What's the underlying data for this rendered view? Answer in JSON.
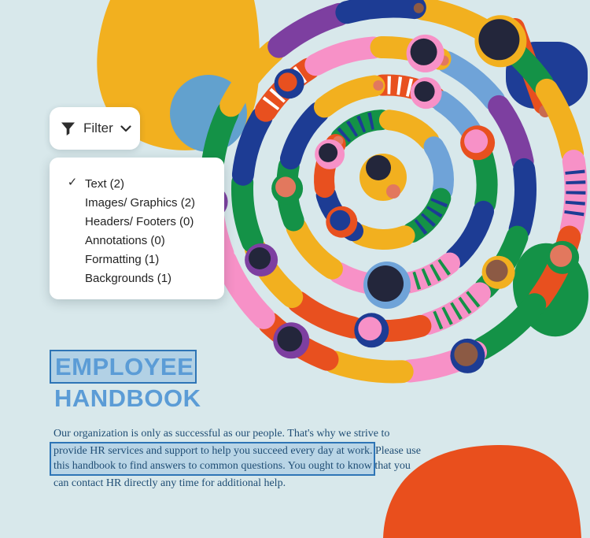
{
  "filter": {
    "button_label": "Filter",
    "check_glyph": "✓",
    "menu_items": [
      {
        "label": "Text (2)",
        "checked": true
      },
      {
        "label": "Images/ Graphics (2)",
        "checked": false
      },
      {
        "label": "Headers/ Footers (0)",
        "checked": false
      },
      {
        "label": "Annotations (0)",
        "checked": false
      },
      {
        "label": "Formatting (1)",
        "checked": false
      },
      {
        "label": "Backgrounds (1)",
        "checked": false
      }
    ]
  },
  "content": {
    "title_line1": "EMPLOYEE",
    "title_line2": "HANDBOOK",
    "paragraph_lines": [
      "Our organization is only as successful as our people. That's why we strive to",
      "provide HR services and support to help you succeed every day at work. Please use",
      "this handbook to find answers to common questions. You ought to know that you",
      "can contact HR directly any time for additional help."
    ]
  },
  "colors": {
    "background": "#d8e8eb",
    "selection_border_blue": "#2e75b6",
    "selection_fill_blue": "rgba(91,156,214,0.3)",
    "title_blue": "#5b9cd6",
    "paragraph_blue": "#204e75",
    "menu_text": "#222222",
    "blob_yellow": "#f2b01f",
    "blob_blue": "#62a1ce",
    "blob_navy": "#1e3d96",
    "blob_orange": "#e94f1d"
  },
  "illustration": {
    "name": "people-holding-hands-spiral",
    "palette": {
      "yellow": "#f2b01f",
      "orange": "#e8501f",
      "green": "#149247",
      "navy": "#1d3c94",
      "purple": "#7d3fa0",
      "pink": "#f791c7",
      "sky": "#6fa3d8",
      "skin": "#e2785e",
      "skin_dark": "#c96a50",
      "brown": "#8c5a44",
      "head": "#23263b",
      "white": "#ffffff"
    },
    "rings": [
      {
        "colors": [
          "green|navy",
          "yellow",
          "sky",
          "green|navy",
          "yellow",
          "navy",
          "orange"
        ]
      },
      {
        "colors": [
          "orange|white",
          "sky",
          "green",
          "navy",
          "pink|green",
          "pink",
          "yellow",
          "green",
          "navy",
          "yellow"
        ]
      },
      {
        "colors": [
          "sky",
          "purple",
          "navy",
          "green",
          "pink|green",
          "orange",
          "orange",
          "yellow",
          "green",
          "navy",
          "orange|white",
          "pink",
          "yellow"
        ]
      },
      {
        "colors": [
          "yellow",
          "green",
          "yellow",
          "pink|navy",
          "orange",
          "green",
          "pink",
          "yellow",
          "orange",
          "pink",
          "pink",
          "green",
          "yellow",
          "purple",
          "navy"
        ]
      }
    ]
  }
}
